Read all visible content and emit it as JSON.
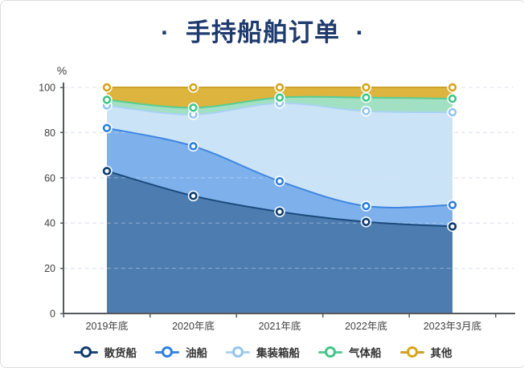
{
  "page": {
    "title": "· 手持船舶订单 ·"
  },
  "chart_data": {
    "type": "area",
    "stacked": true,
    "title": "手持船舶订单",
    "unit_label": "%",
    "categories": [
      "2019年底",
      "2020年底",
      "2021年底",
      "2022年底",
      "2023年3月底"
    ],
    "ylim": [
      0,
      100
    ],
    "yticks": [
      0,
      20,
      40,
      60,
      80,
      100
    ],
    "grid": "dashed-horizontal",
    "legend_position": "bottom",
    "series": [
      {
        "name": "散货船",
        "values": [
          63,
          52,
          45,
          40.5,
          38.5
        ],
        "color_fill": "#4c7cb0",
        "color_line": "#1b4a7c",
        "color_marker": "#0e3c6d"
      },
      {
        "name": "油船",
        "values": [
          19,
          22,
          13.5,
          7,
          9.5
        ],
        "color_fill": "#7eb1eb",
        "color_line": "#3e86e2",
        "color_marker": "#2f7fe0"
      },
      {
        "name": "集装箱船",
        "values": [
          10,
          14,
          34.5,
          42,
          41
        ],
        "color_fill": "#cbe3f7",
        "color_line": "#a9d1f2",
        "color_marker": "#93c5ef"
      },
      {
        "name": "气体船",
        "values": [
          2.5,
          3,
          2.5,
          6,
          6
        ],
        "color_fill": "#a2e0c3",
        "color_line": "#59cc93",
        "color_marker": "#3fc688"
      },
      {
        "name": "其他",
        "values": [
          5.5,
          9,
          4.5,
          4.5,
          5
        ],
        "color_fill": "#dcb43e",
        "color_line": "#cfa02b",
        "color_marker": "#d7a419"
      }
    ],
    "colors": {
      "axis": "#55595e",
      "grid": "#e2e6f0",
      "tick_text": "#3f3f3f",
      "title": "#1e3a6e"
    }
  }
}
